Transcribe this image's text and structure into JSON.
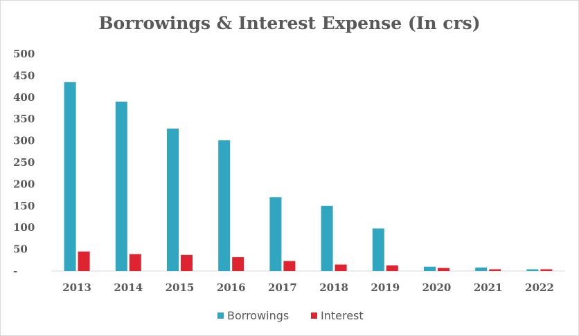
{
  "chart_data": {
    "type": "bar",
    "title": "Borrowings & Interest Expense (In crs)",
    "xlabel": "",
    "ylabel": "",
    "categories": [
      "2013",
      "2014",
      "2015",
      "2016",
      "2017",
      "2018",
      "2019",
      "2020",
      "2021",
      "2022"
    ],
    "series": [
      {
        "name": "Borrowings",
        "color": "#31a6c0",
        "values": [
          435,
          390,
          328,
          301,
          170,
          150,
          98,
          10,
          8,
          4
        ]
      },
      {
        "name": "Interest",
        "color": "#de2331",
        "values": [
          45,
          39,
          37,
          32,
          23,
          15,
          13,
          7,
          4,
          4
        ]
      }
    ],
    "ylim": [
      0,
      500
    ],
    "y_ticks": [
      "-",
      "50",
      "100",
      "150",
      "200",
      "250",
      "300",
      "350",
      "400",
      "450",
      "500"
    ],
    "grid": false,
    "legend": "bottom"
  }
}
